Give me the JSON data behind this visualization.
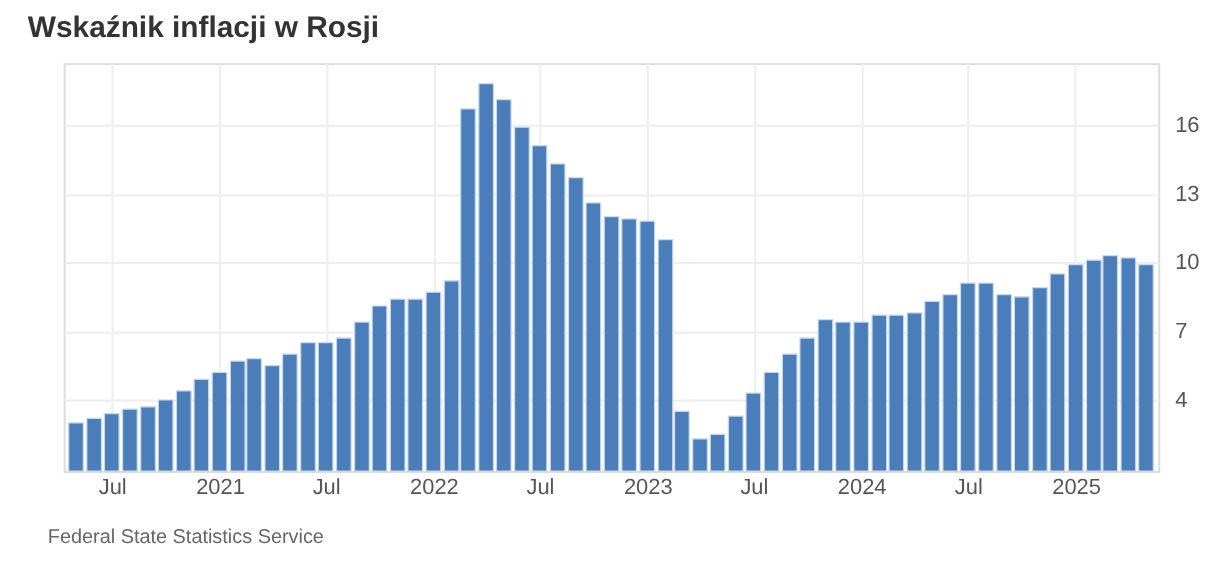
{
  "chart_data": {
    "type": "bar",
    "title": "Wskaźnik inflacji w Rosji",
    "annotations": [
      "Federal State Statistics Service"
    ],
    "x": [
      "2020-05",
      "2020-06",
      "2020-07",
      "2020-08",
      "2020-09",
      "2020-10",
      "2020-11",
      "2020-12",
      "2021-01",
      "2021-02",
      "2021-03",
      "2021-04",
      "2021-05",
      "2021-06",
      "2021-07",
      "2021-08",
      "2021-09",
      "2021-10",
      "2021-11",
      "2021-12",
      "2022-01",
      "2022-02",
      "2022-03",
      "2022-04",
      "2022-05",
      "2022-06",
      "2022-07",
      "2022-08",
      "2022-09",
      "2022-10",
      "2022-11",
      "2022-12",
      "2023-01",
      "2023-02",
      "2023-03",
      "2023-04",
      "2023-05",
      "2023-06",
      "2023-07",
      "2023-08",
      "2023-09",
      "2023-10",
      "2023-11",
      "2023-12",
      "2024-01",
      "2024-02",
      "2024-03",
      "2024-04",
      "2024-05",
      "2024-06",
      "2024-07",
      "2024-08",
      "2024-09",
      "2024-10",
      "2024-11",
      "2024-12",
      "2025-01",
      "2025-02",
      "2025-03",
      "2025-04",
      "2025-05"
    ],
    "values": [
      3.0,
      3.2,
      3.4,
      3.6,
      3.7,
      4.0,
      4.4,
      4.9,
      5.2,
      5.7,
      5.8,
      5.5,
      6.0,
      6.5,
      6.5,
      6.7,
      7.4,
      8.1,
      8.4,
      8.4,
      8.7,
      9.2,
      16.7,
      17.8,
      17.1,
      15.9,
      15.1,
      14.3,
      13.7,
      12.6,
      12.0,
      11.9,
      11.8,
      11.0,
      3.5,
      2.3,
      2.5,
      3.3,
      4.3,
      5.2,
      6.0,
      6.7,
      7.5,
      7.4,
      7.4,
      7.7,
      7.7,
      7.8,
      8.3,
      8.6,
      9.1,
      9.1,
      8.6,
      8.5,
      8.9,
      9.5,
      9.9,
      10.1,
      10.3,
      10.2,
      9.9
    ],
    "color": "#4a7ebb",
    "xlim": [
      "2020-04-10",
      "2025-05-22"
    ],
    "xticks": [
      {
        "value": "2020-07",
        "label": "Jul"
      },
      {
        "value": "2021-01",
        "label": "2021"
      },
      {
        "value": "2021-07",
        "label": "Jul"
      },
      {
        "value": "2022-01",
        "label": "2022"
      },
      {
        "value": "2022-07",
        "label": "Jul"
      },
      {
        "value": "2023-01",
        "label": "2023"
      },
      {
        "value": "2023-07",
        "label": "Jul"
      },
      {
        "value": "2024-01",
        "label": "2024"
      },
      {
        "value": "2024-07",
        "label": "Jul"
      },
      {
        "value": "2025-01",
        "label": "2025"
      }
    ],
    "ylim": [
      0.9,
      18.7
    ],
    "yticks": [
      4,
      7,
      10,
      13,
      16
    ],
    "grid": true
  }
}
